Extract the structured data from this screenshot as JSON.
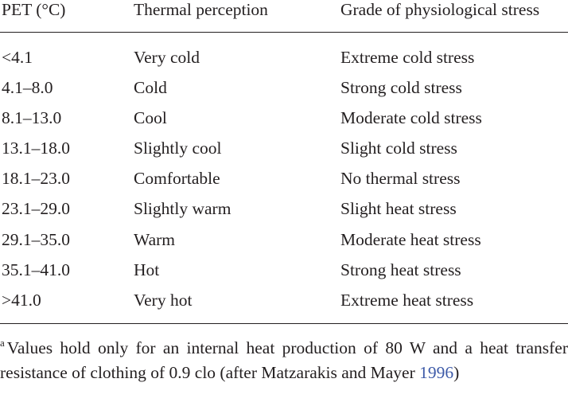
{
  "table": {
    "headers": {
      "pet": "PET (°C)",
      "thermal": "Thermal perception",
      "grade": "Grade of physiological stress"
    },
    "rows": [
      {
        "pet": "<4.1",
        "thermal": "Very cold",
        "grade": "Extreme cold stress"
      },
      {
        "pet": "4.1–8.0",
        "thermal": "Cold",
        "grade": "Strong cold stress"
      },
      {
        "pet": "8.1–13.0",
        "thermal": "Cool",
        "grade": "Moderate cold stress"
      },
      {
        "pet": "13.1–18.0",
        "thermal": "Slightly cool",
        "grade": "Slight cold stress"
      },
      {
        "pet": "18.1–23.0",
        "thermal": "Comfortable",
        "grade": "No thermal stress"
      },
      {
        "pet": "23.1–29.0",
        "thermal": "Slightly warm",
        "grade": "Slight heat stress"
      },
      {
        "pet": "29.1–35.0",
        "thermal": "Warm",
        "grade": "Moderate heat stress"
      },
      {
        "pet": "35.1–41.0",
        "thermal": "Hot",
        "grade": "Strong heat stress"
      },
      {
        "pet": ">41.0",
        "thermal": "Very hot",
        "grade": "Extreme heat stress"
      }
    ]
  },
  "footnote": {
    "marker": "a",
    "text": "Values hold only for an internal heat production of 80 W and a heat transfer resistance of clothing of 0.9 clo (after Matzarakis and Mayer ",
    "citation_year": "1996",
    "closing": ")"
  },
  "colors": {
    "text": "#231f20",
    "link": "#3d5aa8",
    "rule": "#231f20",
    "background": "#ffffff"
  }
}
